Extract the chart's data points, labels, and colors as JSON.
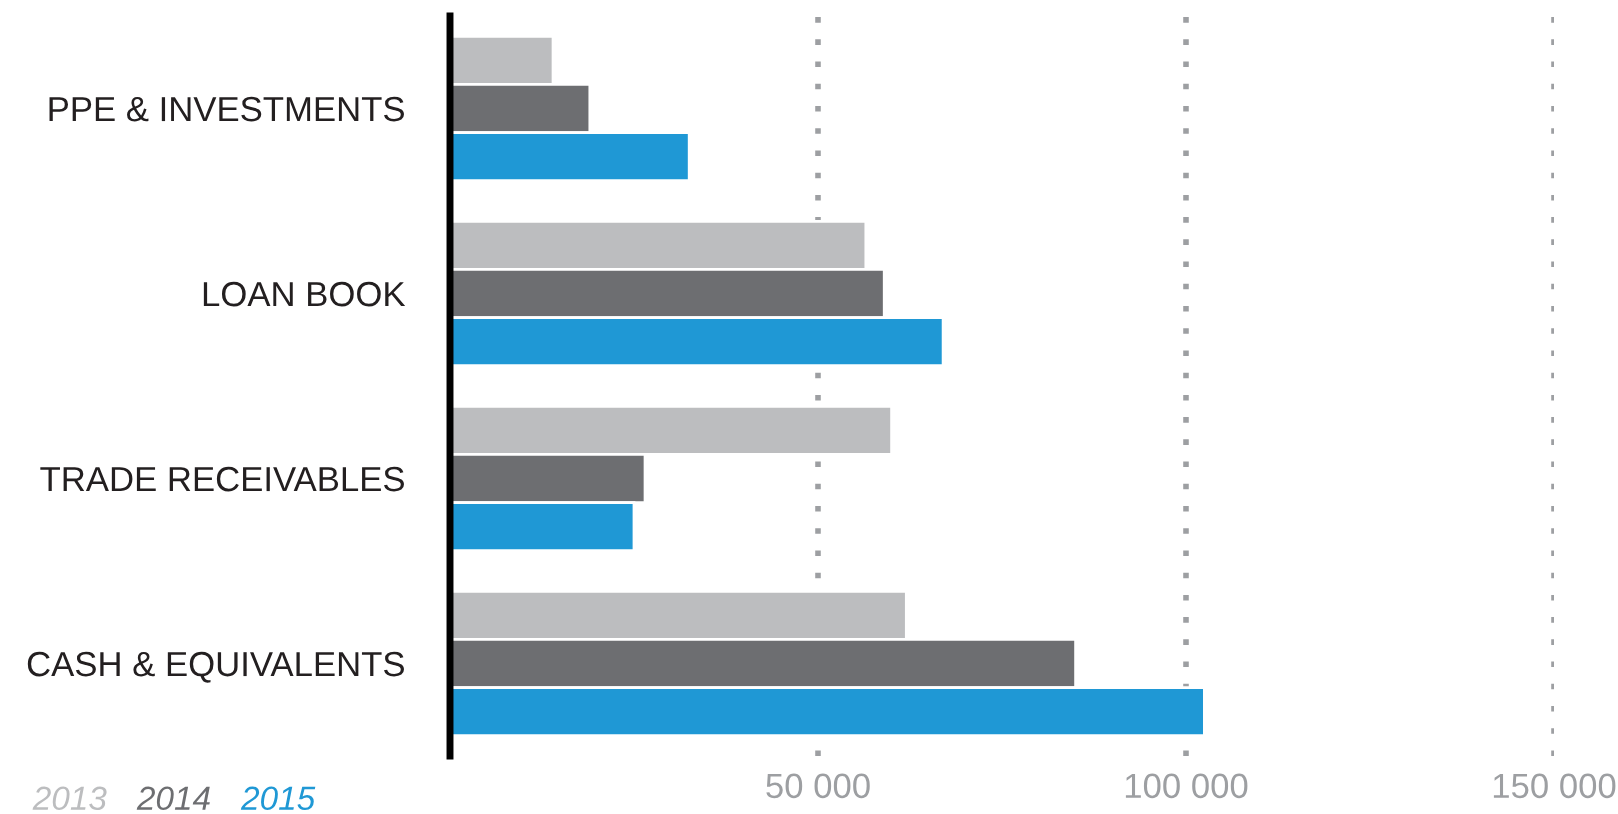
{
  "chart_data": {
    "type": "bar",
    "orientation": "horizontal",
    "categories": [
      "PPE & INVESTMENTS",
      "LOAN BOOK",
      "TRADE RECEIVABLES",
      "CASH & EQUIVALENTS"
    ],
    "series": [
      {
        "name": "2013",
        "color": "#bcbdbf",
        "values": [
          14000,
          56500,
          60000,
          62000
        ]
      },
      {
        "name": "2014",
        "color": "#6d6e71",
        "values": [
          19000,
          59000,
          26500,
          85000
        ]
      },
      {
        "name": "2015",
        "color": "#1f98d5",
        "values": [
          32500,
          67000,
          25000,
          102500
        ]
      }
    ],
    "xlim": [
      0,
      150000
    ],
    "xticks": [
      {
        "value": 50000,
        "label": "50 000"
      },
      {
        "value": 100000,
        "label": "100 000"
      },
      {
        "value": 150000,
        "label": "150 000"
      }
    ],
    "grid": "x",
    "legend": "bottom left"
  }
}
